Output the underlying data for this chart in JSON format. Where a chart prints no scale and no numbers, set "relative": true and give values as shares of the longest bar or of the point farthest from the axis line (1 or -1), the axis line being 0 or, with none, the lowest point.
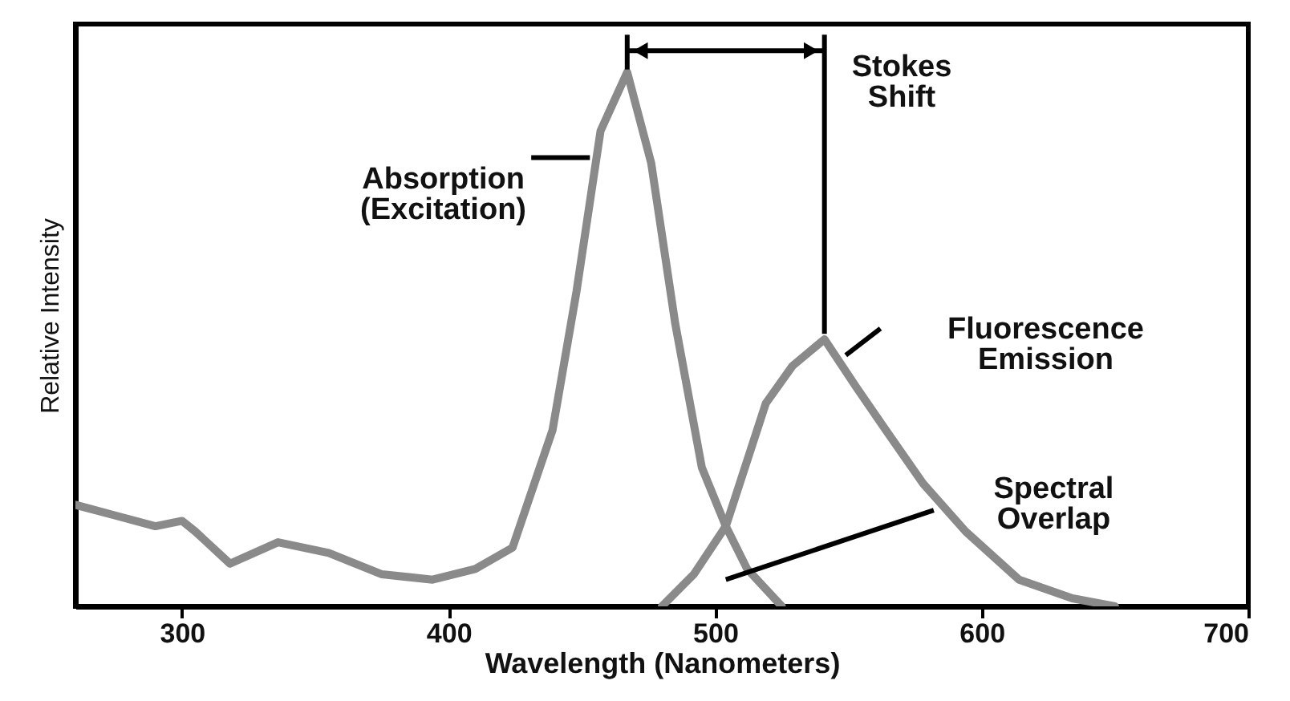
{
  "chart_data": {
    "type": "line",
    "relative": true,
    "xlabel": "Wavelength (Nanometers)",
    "ylabel": "Relative Intensity",
    "xlim": [
      260,
      700
    ],
    "xticks": [
      300,
      400,
      500,
      600,
      700
    ],
    "marker": "none",
    "line_style": "solid",
    "series": [
      {
        "name": "Absorption (Excitation)",
        "color": "#8a8a8a",
        "x": [
          260,
          275,
          290,
          300,
          305,
          318,
          336,
          355,
          375,
          394,
          410,
          424,
          439,
          448,
          457,
          467,
          476,
          485,
          495,
          504,
          512,
          525
        ],
        "values": [
          0.19,
          0.17,
          0.15,
          0.16,
          0.14,
          0.08,
          0.12,
          0.1,
          0.06,
          0.05,
          0.07,
          0.11,
          0.33,
          0.59,
          0.89,
          1,
          0.83,
          0.53,
          0.26,
          0.15,
          0.07,
          0
        ]
      },
      {
        "name": "Fluorescence Emission",
        "color": "#8a8a8a",
        "x": [
          480,
          492,
          504,
          519,
          529,
          541,
          553,
          564,
          578,
          594,
          614,
          634,
          650
        ],
        "values": [
          0,
          0.06,
          0.15,
          0.38,
          0.45,
          0.5,
          0.41,
          0.33,
          0.23,
          0.14,
          0.05,
          0.015,
          0
        ]
      }
    ],
    "annotations": [
      "Stokes Shift",
      "Spectral Overlap"
    ]
  }
}
